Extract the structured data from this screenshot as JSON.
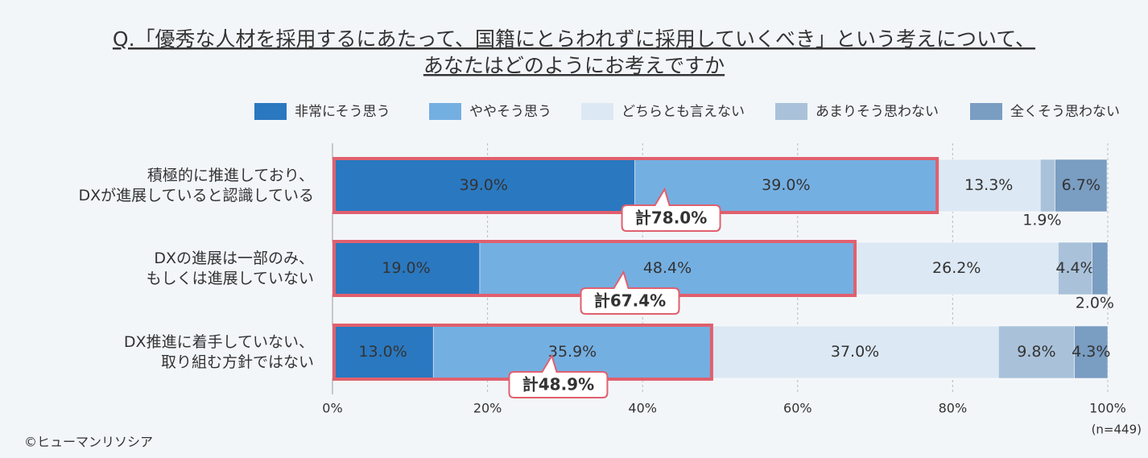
{
  "chart_data": {
    "type": "stacked-bar-horizontal",
    "title": [
      "Q.「優秀な人材を採用するにあたって、国籍にとらわれずに採用していくべき」という考えについて、",
      "あなたはどのようにお考えですか"
    ],
    "categories": [
      [
        "積極的に推進しており、",
        "DXが進展していると認識している"
      ],
      [
        "DXの進展は一部のみ、",
        "もしくは進展していない"
      ],
      [
        "DX推進に着手していない、",
        "取り組む方針ではない"
      ]
    ],
    "series": [
      {
        "name": "非常にそう思う",
        "color": "#2a78c0",
        "label_color": "#ffffff",
        "values": [
          39.0,
          19.0,
          13.0
        ],
        "value_labels": [
          "39.0%",
          "19.0%",
          "13.0%"
        ]
      },
      {
        "name": "ややそう思う",
        "color": "#74afe2",
        "label_color": "#333333",
        "values": [
          39.0,
          48.4,
          35.9
        ],
        "value_labels": [
          "39.0%",
          "48.4%",
          "35.9%"
        ]
      },
      {
        "name": "どちらとも言えない",
        "color": "#dce8f3",
        "label_color": "#333333",
        "values": [
          13.3,
          26.2,
          37.0
        ],
        "value_labels": [
          "13.3%",
          "26.2%",
          "37.0%"
        ]
      },
      {
        "name": "あまりそう思わない",
        "color": "#a9c2da",
        "label_color": "#333333",
        "values": [
          1.9,
          4.4,
          9.8
        ],
        "value_labels": [
          "1.9%",
          "4.4%",
          "9.8%"
        ]
      },
      {
        "name": "全くそう思わない",
        "color": "#7a9dc2",
        "label_color": "#ffffff",
        "values": [
          6.7,
          2.0,
          4.3
        ],
        "value_labels": [
          "6.7%",
          "2.0%",
          "4.3%"
        ]
      }
    ],
    "totals": [
      {
        "value": 78.0,
        "label": "計78.0%"
      },
      {
        "value": 67.4,
        "label": "計67.4%"
      },
      {
        "value": 48.9,
        "label": "計48.9%"
      }
    ],
    "xlim": [
      0,
      100
    ],
    "xticks": [
      {
        "value": 0,
        "label": "0%"
      },
      {
        "value": 20,
        "label": "20%"
      },
      {
        "value": 40,
        "label": "40%"
      },
      {
        "value": 60,
        "label": "60%"
      },
      {
        "value": 80,
        "label": "80%"
      },
      {
        "value": 100,
        "label": "100%"
      }
    ],
    "grid": true,
    "note": "(n=449)",
    "credit": "©ヒューマンリソシア"
  }
}
